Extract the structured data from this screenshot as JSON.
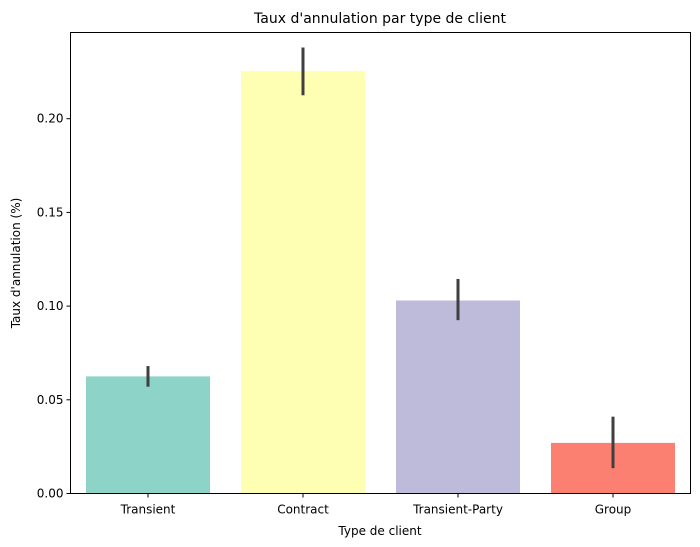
{
  "chart_data": {
    "type": "bar",
    "title": "Taux d'annulation par type de client",
    "xlabel": "Type de client",
    "ylabel": "Taux d'annulation (%)",
    "categories": [
      "Transient",
      "Contract",
      "Transient-Party",
      "Group"
    ],
    "values": [
      0.0625,
      0.2255,
      0.103,
      0.027
    ],
    "error_low": [
      0.057,
      0.2125,
      0.0925,
      0.0135
    ],
    "error_high": [
      0.068,
      0.238,
      0.1145,
      0.041
    ],
    "colors": [
      "#8dd3c7",
      "#ffffb3",
      "#bebada",
      "#fb8072"
    ],
    "ylim": [
      0,
      0.246
    ],
    "yticks": [
      "0.00",
      "0.05",
      "0.10",
      "0.15",
      "0.20"
    ],
    "ytick_values": [
      0,
      0.05,
      0.1,
      0.15,
      0.2
    ],
    "grid": false,
    "legend": "none"
  }
}
